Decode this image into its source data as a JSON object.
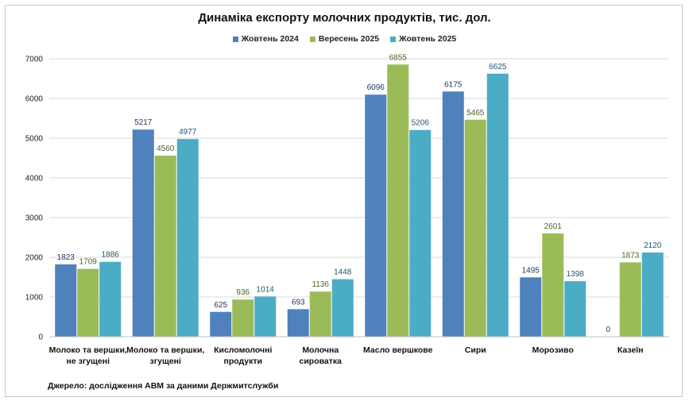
{
  "chart_data": {
    "type": "bar",
    "title": "Динаміка експорту молочних продуктів, тис. дол.",
    "xlabel": "",
    "ylabel": "",
    "ylim": [
      0,
      7000
    ],
    "yticks": [
      0,
      1000,
      2000,
      3000,
      4000,
      5000,
      6000,
      7000
    ],
    "grid": true,
    "legend_position": "top-center",
    "categories": [
      [
        "Молоко та вершки,",
        "не згущені"
      ],
      [
        "Молоко та вершки,",
        "згущені"
      ],
      [
        "Кисломолочні",
        "продукти"
      ],
      [
        "Молочна",
        "сироватка"
      ],
      [
        "Масло вершкове"
      ],
      [
        "Сири"
      ],
      [
        "Морозиво"
      ],
      [
        "Казеїн"
      ]
    ],
    "series": [
      {
        "name": "Жовтень 2024",
        "color": "#4f81bd",
        "label_color": "#1f3864",
        "values": [
          1823,
          5217,
          625,
          693,
          6096,
          6175,
          1495,
          0
        ]
      },
      {
        "name": "Вересень 2025",
        "color": "#9bbb59",
        "label_color": "#4f6228",
        "values": [
          1709,
          4560,
          936,
          1136,
          6855,
          5465,
          2601,
          1873
        ]
      },
      {
        "name": "Жовтень 2025",
        "color": "#4bacc6",
        "label_color": "#215968",
        "values": [
          1886,
          4977,
          1014,
          1448,
          5206,
          6625,
          1398,
          2120
        ]
      }
    ]
  },
  "source_note": "Джерело: дослідження АВМ за даними Держмитслужби"
}
